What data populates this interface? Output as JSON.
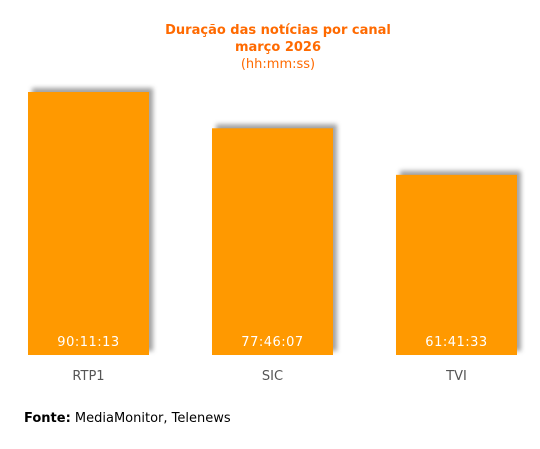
{
  "chart_data": {
    "type": "bar",
    "title": "Duração das notícias por canal",
    "subtitle": "março 2026",
    "unit": "(hh:mm:ss)",
    "categories": [
      "RTP1",
      "SIC",
      "TVI"
    ],
    "values": [
      324.55,
      279.77,
      222.31
    ],
    "value_labels": [
      "90:11:13",
      "77:46:07",
      "61:41:33"
    ],
    "value_units": "hours:minutes:seconds (values in minutes... represented)",
    "bar_color": "#ff9900",
    "label_color": "#ffffff",
    "title_color": "#ff6a00",
    "grid": false,
    "legend": false
  },
  "source": {
    "label": "Fonte:",
    "text": "MediaMonitor, Telenews"
  }
}
